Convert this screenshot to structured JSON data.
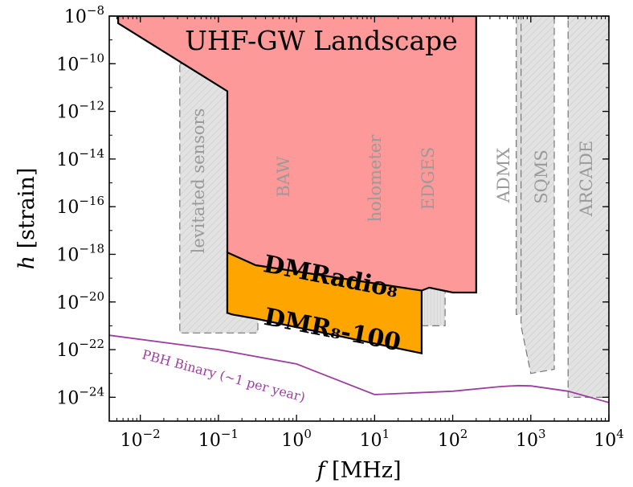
{
  "chart_data": {
    "type": "area",
    "title": "UHF-GW Landscape",
    "xlabel_symbol": "f",
    "xlabel_unit": "[MHz]",
    "ylabel_symbol": "h",
    "ylabel_unit": "[strain]",
    "xscale": "log",
    "yscale": "log",
    "xlim": [
      0.004,
      10000
    ],
    "ylim": [
      1e-25,
      1e-08
    ],
    "x_ticks": [
      {
        "value": 0.01,
        "base": "10",
        "exp": "−2"
      },
      {
        "value": 0.1,
        "base": "10",
        "exp": "−1"
      },
      {
        "value": 1,
        "base": "10",
        "exp": "0"
      },
      {
        "value": 10,
        "base": "10",
        "exp": "1"
      },
      {
        "value": 100,
        "base": "10",
        "exp": "2"
      },
      {
        "value": 1000,
        "base": "10",
        "exp": "3"
      },
      {
        "value": 10000,
        "base": "10",
        "exp": "4"
      }
    ],
    "y_ticks": [
      {
        "value": 1e-24,
        "base": "10",
        "exp": "−24"
      },
      {
        "value": 1e-22,
        "base": "10",
        "exp": "−22"
      },
      {
        "value": 1e-20,
        "base": "10",
        "exp": "−20"
      },
      {
        "value": 1e-18,
        "base": "10",
        "exp": "−18"
      },
      {
        "value": 1e-16,
        "base": "10",
        "exp": "−16"
      },
      {
        "value": 1e-14,
        "base": "10",
        "exp": "−14"
      },
      {
        "value": 1e-12,
        "base": "10",
        "exp": "−12"
      },
      {
        "value": 1e-10,
        "base": "10",
        "exp": "−10"
      },
      {
        "value": 1e-08,
        "base": "10",
        "exp": "−8"
      }
    ],
    "experiments": [
      {
        "name": "levitated sensors",
        "polygon": [
          [
            0.032,
            1e-10
          ],
          [
            0.32,
            1e-10
          ],
          [
            0.32,
            5e-22
          ],
          [
            0.032,
            5e-22
          ]
        ]
      },
      {
        "name": "BAW",
        "polygon": [
          [
            0.32,
            1e-09
          ],
          [
            1.0,
            1e-09
          ],
          [
            1.0,
            1e-19
          ],
          [
            0.32,
            1e-19
          ]
        ]
      },
      {
        "name": "holometer",
        "polygon": [
          [
            1.0,
            1e-09
          ],
          [
            13,
            1e-09
          ],
          [
            13,
            3e-19
          ],
          [
            1.0,
            2e-19
          ]
        ]
      },
      {
        "name": "EDGES",
        "polygon": [
          [
            40,
            1e-09
          ],
          [
            80,
            1e-09
          ],
          [
            80,
            1e-21
          ],
          [
            40,
            1e-21
          ]
        ]
      },
      {
        "name": "ADMX",
        "polygon": [
          [
            650,
            1e-08
          ],
          [
            1000,
            1e-08
          ],
          [
            1000,
            3e-21
          ],
          [
            650,
            3e-21
          ]
        ]
      },
      {
        "name": "SQMS",
        "polygon": [
          [
            750,
            1e-08
          ],
          [
            2000,
            1e-08
          ],
          [
            2000,
            1.5e-23
          ],
          [
            1000,
            1e-23
          ],
          [
            750,
            1e-21
          ]
        ]
      },
      {
        "name": "ARCADE",
        "polygon": [
          [
            3000,
            1e-08
          ],
          [
            10000,
            1e-08
          ],
          [
            10000,
            1e-24
          ],
          [
            3000,
            1e-24
          ]
        ]
      }
    ],
    "regions": [
      {
        "name": "UHF-GW Landscape",
        "color": "#fd9999",
        "polygon": [
          [
            0.0052,
            5e-09
          ],
          [
            0.13,
            7e-12
          ],
          [
            0.13,
            3.5e-21
          ],
          [
            40,
            3e-20
          ],
          [
            50,
            4e-20
          ],
          [
            100,
            2.5e-20
          ],
          [
            200,
            2.5e-20
          ],
          [
            200,
            1e-08
          ],
          [
            0.0052,
            1e-08
          ]
        ]
      },
      {
        "name": "DMRadio₈",
        "color": "#ffa500",
        "polygon": [
          [
            0.13,
            1.2e-18
          ],
          [
            0.3,
            3.5e-19
          ],
          [
            40,
            3e-20
          ],
          [
            40,
            7e-23
          ],
          [
            0.3,
            2e-21
          ],
          [
            0.15,
            3e-21
          ],
          [
            0.13,
            3.5e-21
          ]
        ]
      }
    ],
    "region_labels": [
      {
        "region": "DMRadio₈",
        "text": "DMRadio₈"
      },
      {
        "region": "DMR₈-100",
        "text": "DMR₈-100"
      }
    ],
    "series": [
      {
        "name": "PBH Binary (~1 per year)",
        "color": "#9b3ea0",
        "x": [
          0.004,
          0.1,
          1,
          10,
          100,
          400,
          700,
          1000,
          3000,
          10000
        ],
        "y": [
          4e-22,
          1e-22,
          2.5e-23,
          1.3e-24,
          1.8e-24,
          2.8e-24,
          3.1e-24,
          3e-24,
          1.8e-24,
          6e-25
        ]
      }
    ],
    "colors": {
      "axis": "#000000",
      "experiment_fill": "#e0e0e0",
      "experiment_edge": "#777777",
      "experiment_label": "#9a9a9a"
    }
  }
}
